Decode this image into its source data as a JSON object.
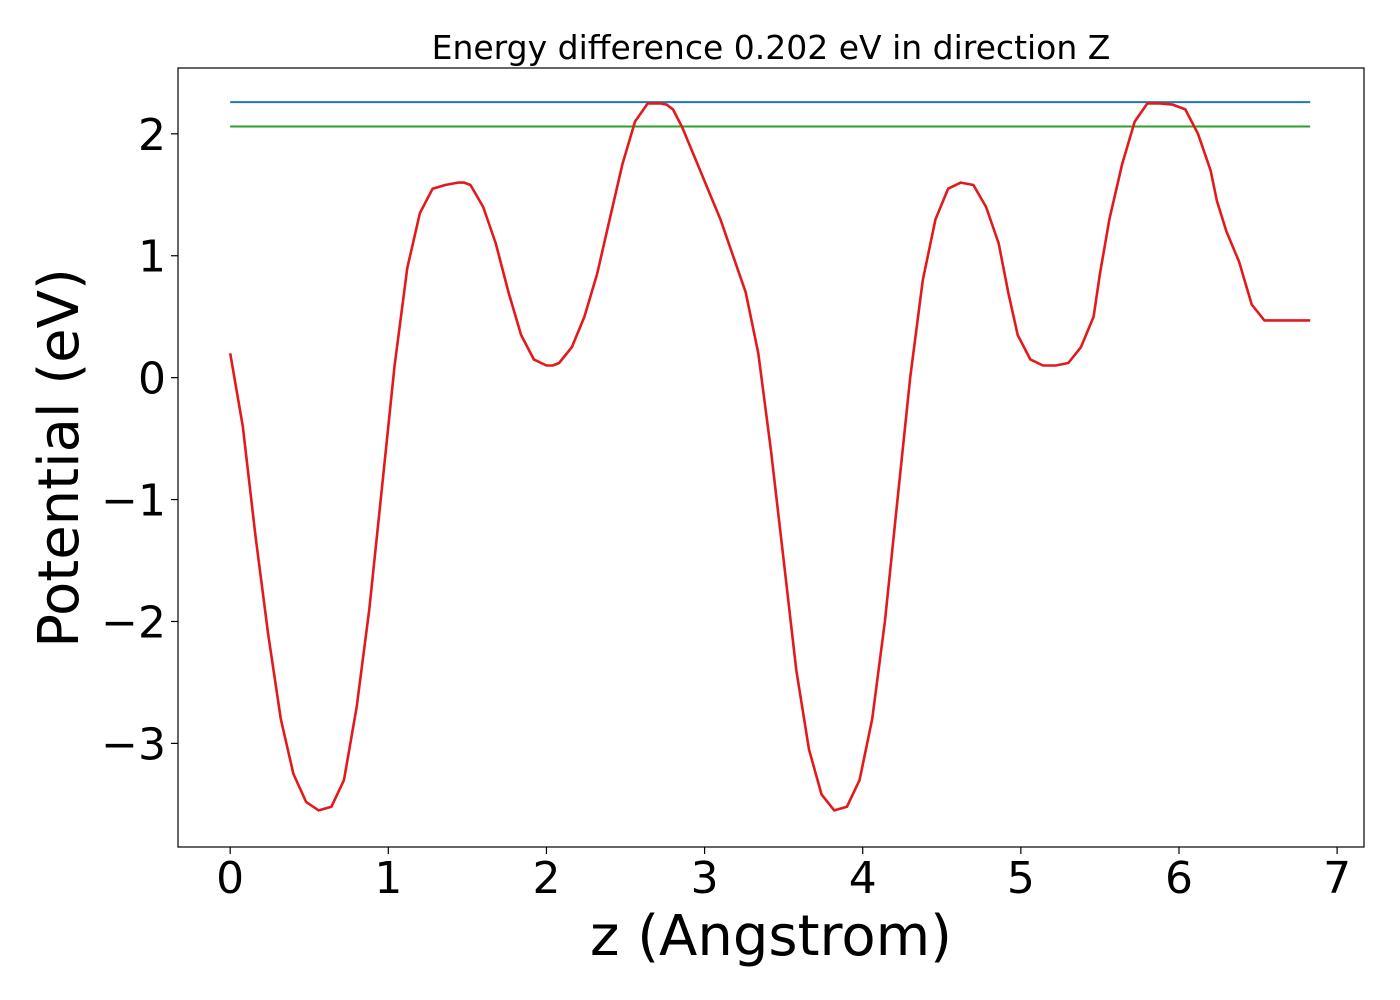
{
  "chart_data": {
    "type": "line",
    "title": "Energy difference 0.202 eV in direction Z",
    "xlabel": "z (Angstrom)",
    "ylabel": "Potential (eV)",
    "xlim": [
      -0.33,
      7.17
    ],
    "ylim": [
      -3.85,
      2.54
    ],
    "xticks": [
      0,
      1,
      2,
      3,
      4,
      5,
      6,
      7
    ],
    "xtick_labels": [
      "0",
      "1",
      "2",
      "3",
      "4",
      "5",
      "6",
      "7"
    ],
    "yticks": [
      2,
      1,
      0,
      -1,
      -2,
      -3
    ],
    "ytick_labels": [
      "2",
      "1",
      "0",
      "−1",
      "−2",
      "−3"
    ],
    "grid": false,
    "series": [
      {
        "color": "#1f77b4",
        "x": [
          0,
          6.83
        ],
        "values": [
          2.26,
          2.26
        ]
      },
      {
        "color": "#2ca02c",
        "x": [
          0,
          6.83
        ],
        "values": [
          2.06,
          2.06
        ]
      },
      {
        "color": "#e31a1c",
        "x": [
          0,
          0.08,
          0.16,
          0.24,
          0.32,
          0.4,
          0.48,
          0.56,
          0.64,
          0.72,
          0.8,
          0.88,
          0.96,
          1.04,
          1.12,
          1.2,
          1.28,
          1.36,
          1.44,
          1.48,
          1.52,
          1.6,
          1.68,
          1.76,
          1.84,
          1.92,
          2.0,
          2.04,
          2.08,
          2.16,
          2.24,
          2.32,
          2.4,
          2.48,
          2.56,
          2.64,
          2.72,
          2.76,
          2.8,
          2.86,
          2.94,
          3.02,
          3.1,
          3.18,
          3.26,
          3.34,
          3.42,
          3.5,
          3.58,
          3.66,
          3.74,
          3.82,
          3.9,
          3.98,
          4.06,
          4.14,
          4.22,
          4.3,
          4.38,
          4.46,
          4.54,
          4.62,
          4.7,
          4.78,
          4.86,
          4.92,
          4.98,
          5.06,
          5.14,
          5.22,
          5.3,
          5.38,
          5.46,
          5.5,
          5.56,
          5.64,
          5.72,
          5.8,
          5.88,
          5.96,
          6.04,
          6.12,
          6.2,
          6.24,
          6.3,
          6.38,
          6.46,
          6.54,
          6.62,
          6.7,
          6.78,
          6.83
        ],
        "values": [
          0.2,
          -0.4,
          -1.3,
          -2.1,
          -2.8,
          -3.25,
          -3.48,
          -3.55,
          -3.52,
          -3.3,
          -2.7,
          -1.9,
          -0.9,
          0.1,
          0.9,
          1.35,
          1.55,
          1.58,
          1.6,
          1.6,
          1.58,
          1.4,
          1.1,
          0.7,
          0.35,
          0.15,
          0.1,
          0.1,
          0.12,
          0.25,
          0.5,
          0.85,
          1.3,
          1.75,
          2.1,
          2.25,
          2.25,
          2.24,
          2.2,
          2.05,
          1.8,
          1.55,
          1.3,
          1.0,
          0.7,
          0.2,
          -0.6,
          -1.5,
          -2.4,
          -3.05,
          -3.42,
          -3.55,
          -3.52,
          -3.3,
          -2.8,
          -2.0,
          -1.0,
          0.0,
          0.8,
          1.3,
          1.55,
          1.6,
          1.58,
          1.4,
          1.1,
          0.7,
          0.35,
          0.15,
          0.1,
          0.1,
          0.12,
          0.25,
          0.5,
          0.85,
          1.3,
          1.75,
          2.1,
          2.25,
          2.25,
          2.24,
          2.2,
          2.0,
          1.7,
          1.45,
          1.2,
          0.95,
          0.6,
          0.47,
          0.47,
          0.47,
          0.47,
          0.47
        ]
      }
    ]
  }
}
